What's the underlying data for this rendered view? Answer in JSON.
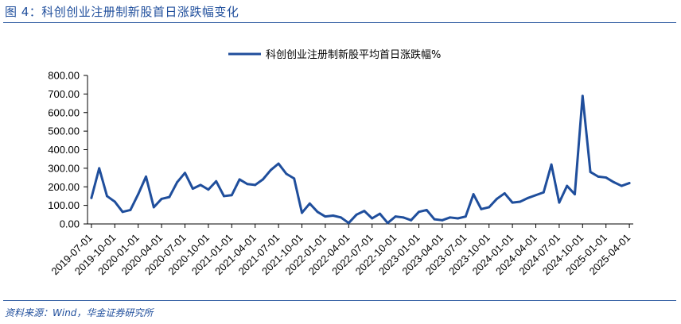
{
  "figure_title": "图 4：科创创业注册制新股首日涨跌幅变化",
  "source_note": "资料来源：Wind，华金证券研究所",
  "chart_data": {
    "type": "line",
    "title": "",
    "xlabel": "",
    "ylabel": "",
    "ylim": [
      0,
      800
    ],
    "y_ticks": [
      "0.00",
      "100.00",
      "200.00",
      "300.00",
      "400.00",
      "500.00",
      "600.00",
      "700.00",
      "800.00"
    ],
    "x_tick_labels": [
      "2019-07-01",
      "2019-10-01",
      "2020-01-01",
      "2020-04-01",
      "2020-07-01",
      "2020-10-01",
      "2021-01-01",
      "2021-04-01",
      "2021-07-01",
      "2021-10-01",
      "2022-01-01",
      "2022-04-01",
      "2022-07-01",
      "2022-10-01",
      "2023-01-01",
      "2023-04-01",
      "2023-07-01",
      "2023-10-01",
      "2024-01-01",
      "2024-04-01",
      "2024-07-01",
      "2024-10-01",
      "2025-01-01",
      "2025-04-01"
    ],
    "legend_position": "top",
    "line_color": "#1f4e9c",
    "x": [
      "2019-07",
      "2019-08",
      "2019-09",
      "2019-10",
      "2019-11",
      "2019-12",
      "2020-01",
      "2020-02",
      "2020-03",
      "2020-04",
      "2020-05",
      "2020-06",
      "2020-07",
      "2020-08",
      "2020-09",
      "2020-10",
      "2020-11",
      "2020-12",
      "2021-01",
      "2021-02",
      "2021-03",
      "2021-04",
      "2021-05",
      "2021-06",
      "2021-07",
      "2021-08",
      "2021-09",
      "2021-10",
      "2021-11",
      "2021-12",
      "2022-01",
      "2022-02",
      "2022-03",
      "2022-04",
      "2022-05",
      "2022-06",
      "2022-07",
      "2022-08",
      "2022-09",
      "2022-10",
      "2022-11",
      "2022-12",
      "2023-01",
      "2023-02",
      "2023-03",
      "2023-04",
      "2023-05",
      "2023-06",
      "2023-07",
      "2023-08",
      "2023-09",
      "2023-10",
      "2023-11",
      "2023-12",
      "2024-01",
      "2024-02",
      "2024-03",
      "2024-04",
      "2024-05",
      "2024-06",
      "2024-07",
      "2024-08",
      "2024-09",
      "2024-10",
      "2024-11",
      "2024-12",
      "2025-01",
      "2025-02",
      "2025-03",
      "2025-04"
    ],
    "series": [
      {
        "name": "科创创业注册制新股平均首日涨跌幅%",
        "values": [
          140,
          300,
          150,
          120,
          65,
          75,
          160,
          255,
          90,
          135,
          145,
          225,
          275,
          190,
          210,
          185,
          230,
          150,
          155,
          240,
          215,
          210,
          240,
          290,
          325,
          270,
          245,
          60,
          110,
          65,
          40,
          45,
          35,
          5,
          50,
          70,
          30,
          55,
          5,
          40,
          35,
          20,
          65,
          75,
          25,
          20,
          35,
          30,
          40,
          160,
          80,
          90,
          135,
          165,
          115,
          120,
          140,
          155,
          170,
          320,
          115,
          205,
          160,
          690,
          280,
          255,
          250,
          225,
          205,
          220
        ]
      }
    ]
  }
}
